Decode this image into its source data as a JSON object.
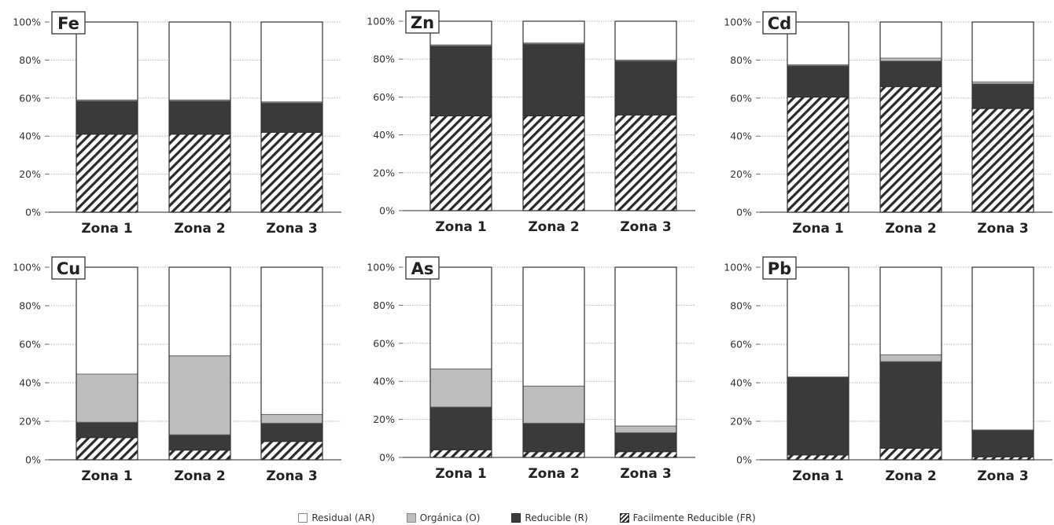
{
  "legend": [
    {
      "key": "AR",
      "label": "Residual (AR)"
    },
    {
      "key": "O",
      "label": "Orgánica (O)"
    },
    {
      "key": "R",
      "label": "Reducible (R)"
    },
    {
      "key": "FR",
      "label": "Facilmente Reducible (FR)"
    }
  ],
  "colors": {
    "AR": "#ffffff",
    "O": "#bdbdbd",
    "R": "#3a3a3a",
    "FR_stripe": "#2a2a2a"
  },
  "chart_data": [
    {
      "type": "bar",
      "stacked": true,
      "title": "Fe",
      "categories": [
        "Zona 1",
        "Zona 2",
        "Zona 3"
      ],
      "ylim": [
        0,
        100
      ],
      "yticks": [
        "0%",
        "20%",
        "40%",
        "60%",
        "80%",
        "100%"
      ],
      "grid": true,
      "series": [
        {
          "name": "Facilmente Reducible (FR)",
          "values": [
            41,
            41,
            42
          ]
        },
        {
          "name": "Reducible (R)",
          "values": [
            17.5,
            17.5,
            15.5
          ]
        },
        {
          "name": "Orgánica (O)",
          "values": [
            0.5,
            0.5,
            0.5
          ]
        },
        {
          "name": "Residual (AR)",
          "values": [
            41,
            41,
            42
          ]
        }
      ]
    },
    {
      "type": "bar",
      "stacked": true,
      "title": "Zn",
      "categories": [
        "Zona 1",
        "Zona 2",
        "Zona 3"
      ],
      "ylim": [
        0,
        100
      ],
      "yticks": [
        "0%",
        "20%",
        "40%",
        "60%",
        "80%",
        "100%"
      ],
      "grid": true,
      "series": [
        {
          "name": "Facilmente Reducible (FR)",
          "values": [
            50,
            50,
            50.5
          ]
        },
        {
          "name": "Reducible (R)",
          "values": [
            37,
            38,
            28.5
          ]
        },
        {
          "name": "Orgánica (O)",
          "values": [
            0.5,
            0.5,
            0.5
          ]
        },
        {
          "name": "Residual (AR)",
          "values": [
            12.5,
            11.5,
            20.5
          ]
        }
      ]
    },
    {
      "type": "bar",
      "stacked": true,
      "title": "Cd",
      "categories": [
        "Zona 1",
        "Zona 2",
        "Zona 3"
      ],
      "ylim": [
        0,
        100
      ],
      "yticks": [
        "0%",
        "20%",
        "40%",
        "60%",
        "80%",
        "100%"
      ],
      "grid": true,
      "series": [
        {
          "name": "Facilmente Reducible (FR)",
          "values": [
            60.5,
            66,
            54.5
          ]
        },
        {
          "name": "Reducible (R)",
          "values": [
            16.5,
            13.5,
            13
          ]
        },
        {
          "name": "Orgánica (O)",
          "values": [
            0.5,
            1.5,
            1
          ]
        },
        {
          "name": "Residual (AR)",
          "values": [
            22.5,
            19,
            31.5
          ]
        }
      ]
    },
    {
      "type": "bar",
      "stacked": true,
      "title": "Cu",
      "categories": [
        "Zona 1",
        "Zona 2",
        "Zona 3"
      ],
      "ylim": [
        0,
        100
      ],
      "yticks": [
        "0%",
        "20%",
        "40%",
        "60%",
        "80%",
        "100%"
      ],
      "grid": true,
      "series": [
        {
          "name": "Facilmente Reducible (FR)",
          "values": [
            11.5,
            5,
            9.5
          ]
        },
        {
          "name": "Reducible (R)",
          "values": [
            8,
            8,
            9.5
          ]
        },
        {
          "name": "Orgánica (O)",
          "values": [
            25,
            41,
            4.5
          ]
        },
        {
          "name": "Residual (AR)",
          "values": [
            55.5,
            46,
            76.5
          ]
        }
      ]
    },
    {
      "type": "bar",
      "stacked": true,
      "title": "As",
      "categories": [
        "Zona 1",
        "Zona 2",
        "Zona 3"
      ],
      "ylim": [
        0,
        100
      ],
      "yticks": [
        "0%",
        "20%",
        "40%",
        "60%",
        "80%",
        "100%"
      ],
      "grid": true,
      "series": [
        {
          "name": "Facilmente Reducible (FR)",
          "values": [
            4,
            3,
            3
          ]
        },
        {
          "name": "Reducible (R)",
          "values": [
            22.5,
            15,
            10
          ]
        },
        {
          "name": "Orgánica (O)",
          "values": [
            20,
            19.5,
            3.5
          ]
        },
        {
          "name": "Residual (AR)",
          "values": [
            53.5,
            62.5,
            83.5
          ]
        }
      ]
    },
    {
      "type": "bar",
      "stacked": true,
      "title": "Pb",
      "categories": [
        "Zona 1",
        "Zona 2",
        "Zona 3"
      ],
      "ylim": [
        0,
        100
      ],
      "yticks": [
        "0%",
        "20%",
        "40%",
        "60%",
        "80%",
        "100%"
      ],
      "grid": true,
      "series": [
        {
          "name": "Facilmente Reducible (FR)",
          "values": [
            2.5,
            6,
            1.5
          ]
        },
        {
          "name": "Reducible (R)",
          "values": [
            40.5,
            45,
            14
          ]
        },
        {
          "name": "Orgánica (O)",
          "values": [
            0,
            3.5,
            0
          ]
        },
        {
          "name": "Residual (AR)",
          "values": [
            57,
            45.5,
            84.5
          ]
        }
      ]
    }
  ]
}
